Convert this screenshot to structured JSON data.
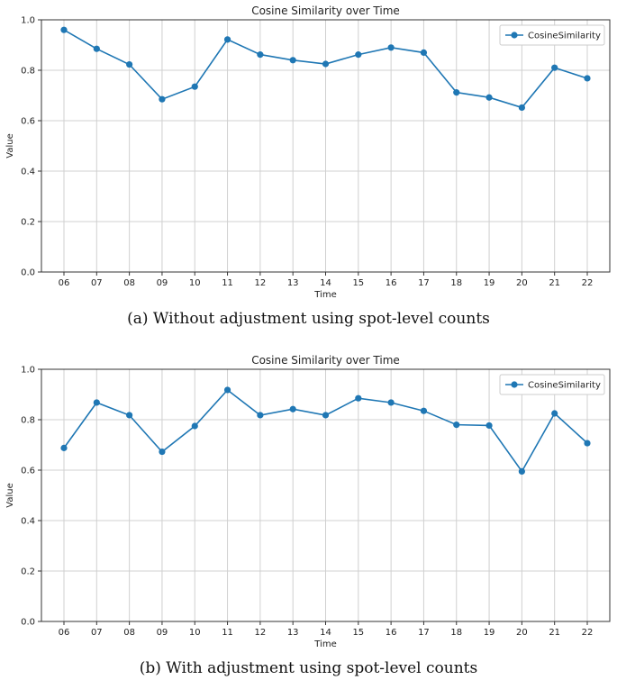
{
  "chart_data": [
    {
      "type": "line",
      "title": "Cosine Similarity over Time",
      "xlabel": "Time",
      "ylabel": "Value",
      "categories": [
        "06",
        "07",
        "08",
        "09",
        "10",
        "11",
        "12",
        "13",
        "14",
        "15",
        "16",
        "17",
        "18",
        "19",
        "20",
        "21",
        "22"
      ],
      "series": [
        {
          "name": "CosineSimilarity",
          "values": [
            0.96,
            0.885,
            0.823,
            0.685,
            0.735,
            0.922,
            0.862,
            0.84,
            0.825,
            0.862,
            0.89,
            0.87,
            0.712,
            0.692,
            0.652,
            0.81,
            0.768
          ]
        }
      ],
      "ylim": [
        0,
        1.0
      ],
      "yticks": [
        "0.0",
        "0.2",
        "0.4",
        "0.6",
        "0.8",
        "1.0"
      ],
      "grid": true,
      "legend_position": "top-right",
      "line_color": "#1f77b4",
      "caption": "(a) Without adjustment using spot-level counts"
    },
    {
      "type": "line",
      "title": "Cosine Similarity over Time",
      "xlabel": "Time",
      "ylabel": "Value",
      "categories": [
        "06",
        "07",
        "08",
        "09",
        "10",
        "11",
        "12",
        "13",
        "14",
        "15",
        "16",
        "17",
        "18",
        "19",
        "20",
        "21",
        "22"
      ],
      "series": [
        {
          "name": "CosineSimilarity",
          "values": [
            0.688,
            0.868,
            0.818,
            0.673,
            0.775,
            0.918,
            0.818,
            0.842,
            0.818,
            0.885,
            0.868,
            0.835,
            0.78,
            0.777,
            0.595,
            0.825,
            0.707
          ]
        }
      ],
      "ylim": [
        0,
        1.0
      ],
      "yticks": [
        "0.0",
        "0.2",
        "0.4",
        "0.6",
        "0.8",
        "1.0"
      ],
      "grid": true,
      "legend_position": "top-right",
      "line_color": "#1f77b4",
      "caption": "(b) With adjustment using spot-level counts"
    }
  ]
}
